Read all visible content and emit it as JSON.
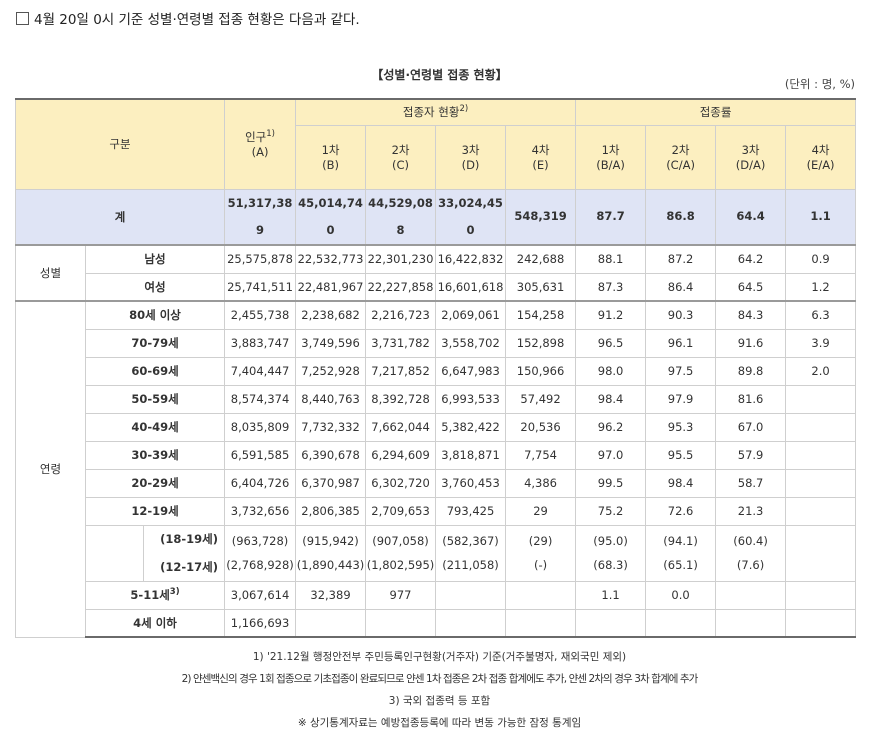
{
  "intro": "4월 20일 0시 기준 성별·연령별 접종 현황은 다음과 같다.",
  "title": "【성별·연령별 접종 현황】",
  "unit": "(단위 : 명, %)",
  "header": {
    "gubun": "구분",
    "population": "인구",
    "population_sup": "1)",
    "population_sub": "(A)",
    "vaccinated_group": "접종자 현황",
    "vaccinated_sup": "2)",
    "rate_group": "접종률",
    "doses": [
      {
        "label": "1차",
        "sub": "(B)"
      },
      {
        "label": "2차",
        "sub": "(C)"
      },
      {
        "label": "3차",
        "sub": "(D)"
      },
      {
        "label": "4차",
        "sub": "(E)"
      }
    ],
    "rates": [
      {
        "label": "1차",
        "sub": "(B/A)"
      },
      {
        "label": "2차",
        "sub": "(C/A)"
      },
      {
        "label": "3차",
        "sub": "(D/A)"
      },
      {
        "label": "4차",
        "sub": "(E/A)"
      }
    ]
  },
  "total": {
    "label": "계",
    "values": [
      "51,317,389",
      "45,014,740",
      "44,529,088",
      "33,024,450",
      "548,319",
      "87.7",
      "86.8",
      "64.4",
      "1.1"
    ]
  },
  "sex_group": "성별",
  "sex_rows": [
    {
      "label": "남성",
      "values": [
        "25,575,878",
        "22,532,773",
        "22,301,230",
        "16,422,832",
        "242,688",
        "88.1",
        "87.2",
        "64.2",
        "0.9"
      ]
    },
    {
      "label": "여성",
      "values": [
        "25,741,511",
        "22,481,967",
        "22,227,858",
        "16,601,618",
        "305,631",
        "87.3",
        "86.4",
        "64.5",
        "1.2"
      ]
    }
  ],
  "age_group": "연령",
  "age_rows": [
    {
      "label": "80세 이상",
      "values": [
        "2,455,738",
        "2,238,682",
        "2,216,723",
        "2,069,061",
        "154,258",
        "91.2",
        "90.3",
        "84.3",
        "6.3"
      ]
    },
    {
      "label": "70-79세",
      "values": [
        "3,883,747",
        "3,749,596",
        "3,731,782",
        "3,558,702",
        "152,898",
        "96.5",
        "96.1",
        "91.6",
        "3.9"
      ]
    },
    {
      "label": "60-69세",
      "values": [
        "7,404,447",
        "7,252,928",
        "7,217,852",
        "6,647,983",
        "150,966",
        "98.0",
        "97.5",
        "89.8",
        "2.0"
      ]
    },
    {
      "label": "50-59세",
      "values": [
        "8,574,374",
        "8,440,763",
        "8,392,728",
        "6,993,533",
        "57,492",
        "98.4",
        "97.9",
        "81.6",
        ""
      ]
    },
    {
      "label": "40-49세",
      "values": [
        "8,035,809",
        "7,732,332",
        "7,662,044",
        "5,382,422",
        "20,536",
        "96.2",
        "95.3",
        "67.0",
        ""
      ]
    },
    {
      "label": "30-39세",
      "values": [
        "6,591,585",
        "6,390,678",
        "6,294,609",
        "3,818,871",
        "7,754",
        "97.0",
        "95.5",
        "57.9",
        ""
      ]
    },
    {
      "label": "20-29세",
      "values": [
        "6,404,726",
        "6,370,987",
        "6,302,720",
        "3,760,453",
        "4,386",
        "99.5",
        "98.4",
        "58.7",
        ""
      ]
    },
    {
      "label": "12-19세",
      "values": [
        "3,732,656",
        "2,806,385",
        "2,709,653",
        "793,425",
        "29",
        "75.2",
        "72.6",
        "21.3",
        ""
      ]
    }
  ],
  "sub_rows": [
    {
      "label": "(18-19세)",
      "values": [
        "(963,728)",
        "(915,942)",
        "(907,058)",
        "(582,367)",
        "(29)",
        "(95.0)",
        "(94.1)",
        "(60.4)",
        ""
      ]
    },
    {
      "label": "(12-17세)",
      "values": [
        "(2,768,928)",
        "(1,890,443)",
        "(1,802,595)",
        "(211,058)",
        "(-)",
        "(68.3)",
        "(65.1)",
        "(7.6)",
        ""
      ]
    }
  ],
  "row_5_11": {
    "label": "5-11세",
    "sup": "3)",
    "values": [
      "3,067,614",
      "32,389",
      "977",
      "",
      "",
      "1.1",
      "0.0",
      "",
      ""
    ]
  },
  "row_4": {
    "label": "4세 이하",
    "values": [
      "1,166,693",
      "",
      "",
      "",
      "",
      "",
      "",
      "",
      ""
    ]
  },
  "notes": [
    "1) '21.12월 행정안전부 주민등록인구현황(거주자) 기준(거주불명자, 재외국민 제외)",
    "2) 얀센백신의 경우 1회 접종으로 기초접종이 완료되므로 얀센 1차 접종은 2차 접종 합계에도 추가, 얀센 2차의 경우 3차 합계에 추가",
    "3) 국외 접종력 등 포함",
    "※ 상기통계자료는 예방접종등록에 따라 변동 가능한 잠정 통계임"
  ]
}
